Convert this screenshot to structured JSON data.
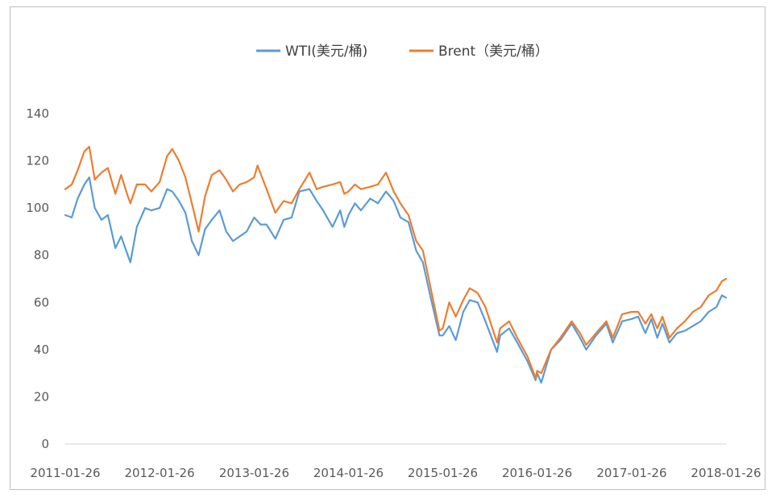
{
  "chart_data": {
    "type": "line",
    "title": "",
    "xlabel": "",
    "ylabel": "",
    "ylim": [
      0,
      140
    ],
    "yticks": [
      0,
      20,
      40,
      60,
      80,
      100,
      120,
      140
    ],
    "xlim": [
      "2011-01-26",
      "2018-01-26"
    ],
    "xtick_labels": [
      "2011-01-26",
      "2012-01-26",
      "2013-01-26",
      "2014-01-26",
      "2015-01-26",
      "2016-01-26",
      "2017-01-26",
      "2018-01-26"
    ],
    "grid": false,
    "legend": "top-center",
    "colors": {
      "WTI": "#5b9bd5",
      "Brent": "#ed7d31"
    },
    "series": [
      {
        "name": "WTI(美元/桶)",
        "points": [
          [
            "2011-01-26",
            97
          ],
          [
            "2011-02-20",
            96
          ],
          [
            "2011-03-15",
            104
          ],
          [
            "2011-04-10",
            110
          ],
          [
            "2011-04-29",
            113
          ],
          [
            "2011-05-20",
            100
          ],
          [
            "2011-06-15",
            95
          ],
          [
            "2011-07-10",
            97
          ],
          [
            "2011-08-08",
            83
          ],
          [
            "2011-08-30",
            88
          ],
          [
            "2011-09-25",
            80
          ],
          [
            "2011-10-05",
            77
          ],
          [
            "2011-10-30",
            92
          ],
          [
            "2011-12-01",
            100
          ],
          [
            "2011-12-25",
            99
          ],
          [
            "2012-01-26",
            100
          ],
          [
            "2012-02-24",
            108
          ],
          [
            "2012-03-15",
            107
          ],
          [
            "2012-04-10",
            103
          ],
          [
            "2012-05-05",
            98
          ],
          [
            "2012-05-30",
            86
          ],
          [
            "2012-06-25",
            80
          ],
          [
            "2012-07-20",
            91
          ],
          [
            "2012-08-15",
            95
          ],
          [
            "2012-09-14",
            99
          ],
          [
            "2012-10-10",
            90
          ],
          [
            "2012-11-05",
            86
          ],
          [
            "2012-12-01",
            88
          ],
          [
            "2012-12-28",
            90
          ],
          [
            "2013-01-26",
            96
          ],
          [
            "2013-02-20",
            93
          ],
          [
            "2013-03-15",
            93
          ],
          [
            "2013-04-18",
            87
          ],
          [
            "2013-05-20",
            95
          ],
          [
            "2013-06-20",
            96
          ],
          [
            "2013-07-20",
            107
          ],
          [
            "2013-08-28",
            108
          ],
          [
            "2013-09-25",
            103
          ],
          [
            "2013-10-20",
            99
          ],
          [
            "2013-11-25",
            92
          ],
          [
            "2013-12-25",
            99
          ],
          [
            "2014-01-10",
            92
          ],
          [
            "2014-01-26",
            97
          ],
          [
            "2014-02-20",
            102
          ],
          [
            "2014-03-15",
            99
          ],
          [
            "2014-04-20",
            104
          ],
          [
            "2014-05-20",
            102
          ],
          [
            "2014-06-20",
            107
          ],
          [
            "2014-07-20",
            103
          ],
          [
            "2014-08-15",
            96
          ],
          [
            "2014-09-15",
            94
          ],
          [
            "2014-10-15",
            82
          ],
          [
            "2014-11-10",
            77
          ],
          [
            "2014-12-10",
            62
          ],
          [
            "2015-01-13",
            46
          ],
          [
            "2015-01-26",
            46
          ],
          [
            "2015-02-20",
            50
          ],
          [
            "2015-03-17",
            44
          ],
          [
            "2015-04-15",
            56
          ],
          [
            "2015-05-10",
            61
          ],
          [
            "2015-06-10",
            60
          ],
          [
            "2015-07-10",
            52
          ],
          [
            "2015-08-24",
            39
          ],
          [
            "2015-09-05",
            46
          ],
          [
            "2015-10-10",
            49
          ],
          [
            "2015-11-10",
            43
          ],
          [
            "2015-12-20",
            35
          ],
          [
            "2016-01-20",
            27
          ],
          [
            "2016-01-26",
            30
          ],
          [
            "2016-02-11",
            26
          ],
          [
            "2016-03-20",
            40
          ],
          [
            "2016-04-25",
            44
          ],
          [
            "2016-06-08",
            51
          ],
          [
            "2016-07-10",
            45
          ],
          [
            "2016-08-03",
            40
          ],
          [
            "2016-09-10",
            46
          ],
          [
            "2016-10-20",
            51
          ],
          [
            "2016-11-14",
            43
          ],
          [
            "2016-12-20",
            52
          ],
          [
            "2017-01-26",
            53
          ],
          [
            "2017-02-20",
            54
          ],
          [
            "2017-03-20",
            47
          ],
          [
            "2017-04-12",
            53
          ],
          [
            "2017-05-05",
            45
          ],
          [
            "2017-05-25",
            51
          ],
          [
            "2017-06-21",
            43
          ],
          [
            "2017-07-20",
            47
          ],
          [
            "2017-08-20",
            48
          ],
          [
            "2017-09-20",
            50
          ],
          [
            "2017-10-20",
            52
          ],
          [
            "2017-11-20",
            56
          ],
          [
            "2017-12-20",
            58
          ],
          [
            "2018-01-10",
            63
          ],
          [
            "2018-01-26",
            62
          ]
        ]
      },
      {
        "name": "Brent（美元/桶）",
        "points": [
          [
            "2011-01-26",
            108
          ],
          [
            "2011-02-20",
            110
          ],
          [
            "2011-03-15",
            116
          ],
          [
            "2011-04-10",
            124
          ],
          [
            "2011-04-29",
            126
          ],
          [
            "2011-05-20",
            112
          ],
          [
            "2011-06-15",
            115
          ],
          [
            "2011-07-10",
            117
          ],
          [
            "2011-08-08",
            106
          ],
          [
            "2011-08-30",
            114
          ],
          [
            "2011-09-25",
            105
          ],
          [
            "2011-10-05",
            102
          ],
          [
            "2011-10-30",
            110
          ],
          [
            "2011-12-01",
            110
          ],
          [
            "2011-12-25",
            107
          ],
          [
            "2012-01-26",
            111
          ],
          [
            "2012-02-24",
            122
          ],
          [
            "2012-03-15",
            125
          ],
          [
            "2012-04-10",
            120
          ],
          [
            "2012-05-05",
            113
          ],
          [
            "2012-05-30",
            102
          ],
          [
            "2012-06-25",
            90
          ],
          [
            "2012-07-20",
            105
          ],
          [
            "2012-08-15",
            114
          ],
          [
            "2012-09-14",
            116
          ],
          [
            "2012-10-10",
            112
          ],
          [
            "2012-11-05",
            107
          ],
          [
            "2012-12-01",
            110
          ],
          [
            "2012-12-28",
            111
          ],
          [
            "2013-01-26",
            113
          ],
          [
            "2013-02-08",
            118
          ],
          [
            "2013-03-15",
            108
          ],
          [
            "2013-04-18",
            98
          ],
          [
            "2013-05-20",
            103
          ],
          [
            "2013-06-20",
            102
          ],
          [
            "2013-07-20",
            108
          ],
          [
            "2013-08-28",
            115
          ],
          [
            "2013-09-25",
            108
          ],
          [
            "2013-10-20",
            109
          ],
          [
            "2013-11-25",
            110
          ],
          [
            "2013-12-25",
            111
          ],
          [
            "2014-01-10",
            106
          ],
          [
            "2014-01-26",
            107
          ],
          [
            "2014-02-20",
            110
          ],
          [
            "2014-03-15",
            108
          ],
          [
            "2014-04-20",
            109
          ],
          [
            "2014-05-20",
            110
          ],
          [
            "2014-06-20",
            115
          ],
          [
            "2014-07-20",
            107
          ],
          [
            "2014-08-15",
            102
          ],
          [
            "2014-09-15",
            97
          ],
          [
            "2014-10-15",
            86
          ],
          [
            "2014-11-10",
            82
          ],
          [
            "2014-12-10",
            66
          ],
          [
            "2015-01-13",
            48
          ],
          [
            "2015-01-26",
            49
          ],
          [
            "2015-02-20",
            60
          ],
          [
            "2015-03-17",
            54
          ],
          [
            "2015-04-15",
            61
          ],
          [
            "2015-05-10",
            66
          ],
          [
            "2015-06-10",
            64
          ],
          [
            "2015-07-10",
            58
          ],
          [
            "2015-08-24",
            43
          ],
          [
            "2015-09-05",
            49
          ],
          [
            "2015-10-10",
            52
          ],
          [
            "2015-11-10",
            45
          ],
          [
            "2015-12-20",
            37
          ],
          [
            "2016-01-20",
            28
          ],
          [
            "2016-01-26",
            31
          ],
          [
            "2016-02-11",
            30
          ],
          [
            "2016-03-20",
            40
          ],
          [
            "2016-04-25",
            45
          ],
          [
            "2016-06-08",
            52
          ],
          [
            "2016-07-10",
            47
          ],
          [
            "2016-08-03",
            42
          ],
          [
            "2016-09-10",
            47
          ],
          [
            "2016-10-20",
            52
          ],
          [
            "2016-11-14",
            45
          ],
          [
            "2016-12-20",
            55
          ],
          [
            "2017-01-26",
            56
          ],
          [
            "2017-02-20",
            56
          ],
          [
            "2017-03-20",
            51
          ],
          [
            "2017-04-12",
            55
          ],
          [
            "2017-05-05",
            49
          ],
          [
            "2017-05-25",
            54
          ],
          [
            "2017-06-21",
            45
          ],
          [
            "2017-07-20",
            49
          ],
          [
            "2017-08-20",
            52
          ],
          [
            "2017-09-20",
            56
          ],
          [
            "2017-10-20",
            58
          ],
          [
            "2017-11-20",
            63
          ],
          [
            "2017-12-20",
            65
          ],
          [
            "2018-01-10",
            69
          ],
          [
            "2018-01-26",
            70
          ]
        ]
      }
    ]
  }
}
